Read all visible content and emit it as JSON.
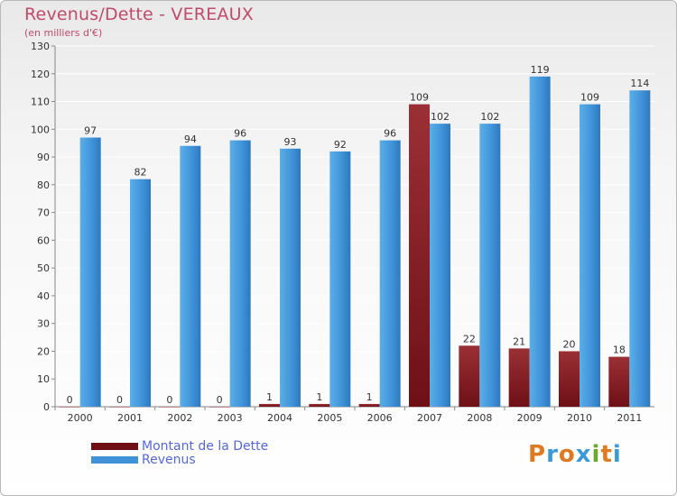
{
  "colors": {
    "dette": "#6e1016",
    "revenus": "#3f92d8",
    "title": "#c04a6a",
    "legend_text": "#5566dd"
  },
  "logo": {
    "chars": [
      "P",
      "r",
      "o",
      "x",
      "i",
      "t",
      "i"
    ],
    "colors": [
      "#e07a20",
      "#3a9ad9",
      "#e07a20",
      "#3a9ad9",
      "#6aaa2a",
      "#e07a20",
      "#3a9ad9"
    ]
  },
  "chart_data": {
    "type": "bar",
    "title": "Revenus/Dette - VEREAUX",
    "subtitle": "(en milliers d'€)",
    "categories": [
      "2000",
      "2001",
      "2002",
      "2003",
      "2004",
      "2005",
      "2006",
      "2007",
      "2008",
      "2009",
      "2010",
      "2011"
    ],
    "series": [
      {
        "name": "Montant de la Dette",
        "values": [
          0,
          0,
          0,
          0,
          1,
          1,
          1,
          109,
          22,
          21,
          20,
          18
        ]
      },
      {
        "name": "Revenus",
        "values": [
          97,
          82,
          94,
          96,
          93,
          92,
          96,
          102,
          102,
          119,
          109,
          114
        ]
      }
    ],
    "ylim": [
      0,
      130
    ],
    "yticks": [
      0,
      10,
      20,
      30,
      40,
      50,
      60,
      70,
      80,
      90,
      100,
      110,
      120,
      130
    ],
    "grid": true,
    "legend_position": "bottom-left"
  }
}
